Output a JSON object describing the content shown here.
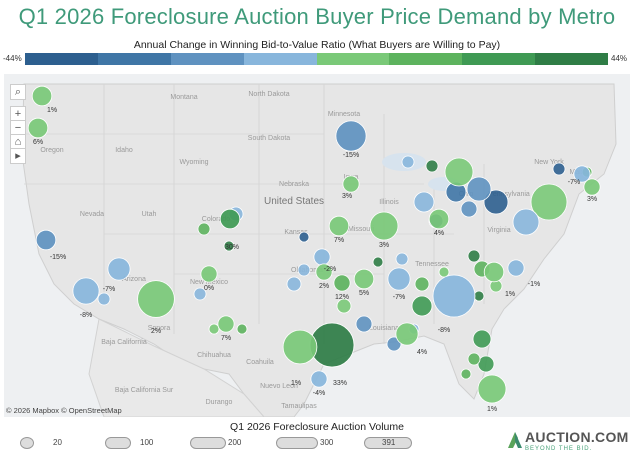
{
  "title": "Q1 2026 Foreclosure Auction Buyer Price Demand by Metro",
  "subtitle": "Annual Change in Winning Bid-to-Value Ratio (What Buyers are Willing to Pay)",
  "color_legend": {
    "min_label": "-44%",
    "max_label": "44%",
    "steps": [
      "#2d5f8f",
      "#3f76a6",
      "#5f92c0",
      "#88b6dc",
      "#7ac978",
      "#5db35e",
      "#3f9a54",
      "#2f7d46"
    ]
  },
  "map_labels": {
    "regions": [
      "North Dakota",
      "South Dakota",
      "Montana",
      "Wyoming",
      "Idaho",
      "Oregon",
      "Nevada",
      "Utah",
      "Colorado",
      "Arizona",
      "New Mexico",
      "Nebraska",
      "Kansas",
      "Oklahoma",
      "Iowa",
      "Missouri",
      "Minnesota",
      "Illinois",
      "Ohio",
      "Tennessee",
      "Louisiana",
      "Maine",
      "New York",
      "Virginia",
      "Pennsylvania",
      "United States",
      "Baja California",
      "Baja California Sur",
      "Chihuahua",
      "Sonora",
      "Coahuila",
      "Nuevo Leon",
      "Tamaulipas",
      "Durango"
    ]
  },
  "chart_data": {
    "type": "bubble-map",
    "metric": "Annual Change in Winning Bid-to-Value Ratio",
    "size_metric": "Q1 2026 Foreclosure Auction Volume",
    "points": [
      {
        "label": "1%",
        "region": "Seattle",
        "value": 1,
        "volume": 40
      },
      {
        "label": "6%",
        "region": "Portland",
        "value": 6,
        "volume": 40
      },
      {
        "label": "-15%",
        "region": "Minneapolis",
        "value": -15,
        "volume": 150
      },
      {
        "label": "-7%",
        "region": "Boston",
        "value": -7,
        "volume": 20
      },
      {
        "label": "3%",
        "region": "Maine",
        "value": 3,
        "volume": 20
      },
      {
        "label": "3%",
        "region": "Omaha",
        "value": 3,
        "volume": 20
      },
      {
        "label": "7%",
        "region": "Kansas City",
        "value": 7,
        "volume": 40
      },
      {
        "label": "3%",
        "region": "St. Louis",
        "value": 3,
        "volume": 120
      },
      {
        "label": "4%",
        "region": "Louisville",
        "value": 4,
        "volume": 40
      },
      {
        "label": "30%",
        "region": "Denver",
        "value": 30,
        "volume": 40
      },
      {
        "label": "-15%",
        "region": "San Francisco",
        "value": -15,
        "volume": 40
      },
      {
        "label": "-2%",
        "region": "Oklahoma City",
        "value": -2,
        "volume": 20
      },
      {
        "label": "2%",
        "region": "Dallas North",
        "value": 2,
        "volume": 20
      },
      {
        "label": "12%",
        "region": "Dallas",
        "value": 12,
        "volume": 20
      },
      {
        "label": "5%",
        "region": "Memphis",
        "value": 5,
        "volume": 40
      },
      {
        "label": "-7%",
        "region": "Nashville",
        "value": -7,
        "volume": 60
      },
      {
        "label": "-1%",
        "region": "Raleigh",
        "value": -1,
        "volume": 20
      },
      {
        "label": "1%",
        "region": "Charlotte",
        "value": 1,
        "volume": 40
      },
      {
        "label": "-7%",
        "region": "Las Vegas",
        "value": -7,
        "volume": 60
      },
      {
        "label": "-8%",
        "region": "Los Angeles",
        "value": -8,
        "volume": 100
      },
      {
        "label": "0%",
        "region": "Albuquerque",
        "value": 0,
        "volume": 20
      },
      {
        "label": "2%",
        "region": "Phoenix",
        "value": 2,
        "volume": 250
      },
      {
        "label": "7%",
        "region": "El Paso",
        "value": 7,
        "volume": 20
      },
      {
        "label": "-8%",
        "region": "Atlanta",
        "value": -8,
        "volume": 350
      },
      {
        "label": "33%",
        "region": "Houston",
        "value": 33,
        "volume": 391
      },
      {
        "label": "4%",
        "region": "Mobile",
        "value": 4,
        "volume": 60
      },
      {
        "label": "1%",
        "region": "San Antonio",
        "value": 1,
        "volume": 200
      },
      {
        "label": "-4%",
        "region": "Rio Grande Valley",
        "value": -4,
        "volume": 20
      },
      {
        "label": "1%",
        "region": "Miami",
        "value": 1,
        "volume": 120
      }
    ]
  },
  "attribution": "© 2026 Mapbox © OpenStreetMap",
  "map_controls": [
    "search",
    "zoom-in",
    "zoom-out",
    "home",
    "pan"
  ],
  "size_legend": {
    "title": "Q1 2026 Foreclosure Auction Volume",
    "items": [
      "20",
      "100",
      "200",
      "300",
      "391"
    ]
  },
  "logo": {
    "name": "AUCTION.COM",
    "tagline": "BEYOND THE BID."
  }
}
